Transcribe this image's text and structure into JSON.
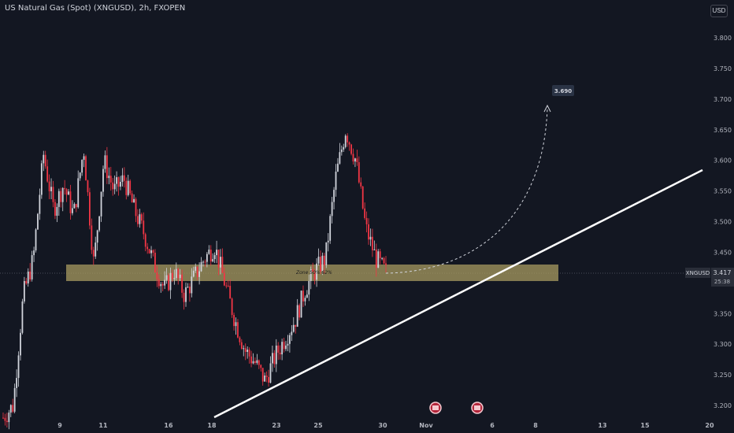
{
  "chart_title": "US Natural Gas (Spot) (XNGUSD), 2h, FXOPEN",
  "currency_button": "USD",
  "price_label": {
    "symbol": "XNGUSD",
    "price": "3.417",
    "countdown": "25:38"
  },
  "target_label": "3.690",
  "zone_label": "Zone 50% 62%",
  "colors": {
    "background": "#131722",
    "up": "#d1d4dc",
    "down": "#f23645",
    "zone": "#a89b60",
    "trendline": "#ffffff",
    "target_box": "#2a3345"
  },
  "chart_data": {
    "type": "candlestick",
    "title": "US Natural Gas (Spot) (XNGUSD), 2h, FXOPEN",
    "y_ticks": [
      "3.800",
      "3.750",
      "3.700",
      "3.650",
      "3.600",
      "3.550",
      "3.500",
      "3.450",
      "3.400",
      "3.350",
      "3.300",
      "3.250",
      "3.200"
    ],
    "x_ticks": [
      "9",
      "11",
      "16",
      "18",
      "23",
      "25",
      "30",
      "Nov",
      "6",
      "8",
      "13",
      "15",
      "20"
    ],
    "ylim": [
      3.18,
      3.83
    ],
    "zone": {
      "label": "Zone 50% 62%",
      "low": 3.405,
      "high": 3.432
    },
    "last_price": 3.417,
    "target": 3.69,
    "trendline": {
      "from_price": 3.185,
      "to_price": 3.58
    },
    "price_path": [
      3.18,
      3.2,
      3.38,
      3.44,
      3.61,
      3.52,
      3.56,
      3.51,
      3.62,
      3.43,
      3.6,
      3.55,
      3.57,
      3.52,
      3.48,
      3.43,
      3.39,
      3.42,
      3.38,
      3.41,
      3.44,
      3.46,
      3.4,
      3.34,
      3.29,
      3.27,
      3.24,
      3.28,
      3.31,
      3.34,
      3.39,
      3.42,
      3.44,
      3.57,
      3.65,
      3.6,
      3.49,
      3.44,
      3.417
    ]
  }
}
